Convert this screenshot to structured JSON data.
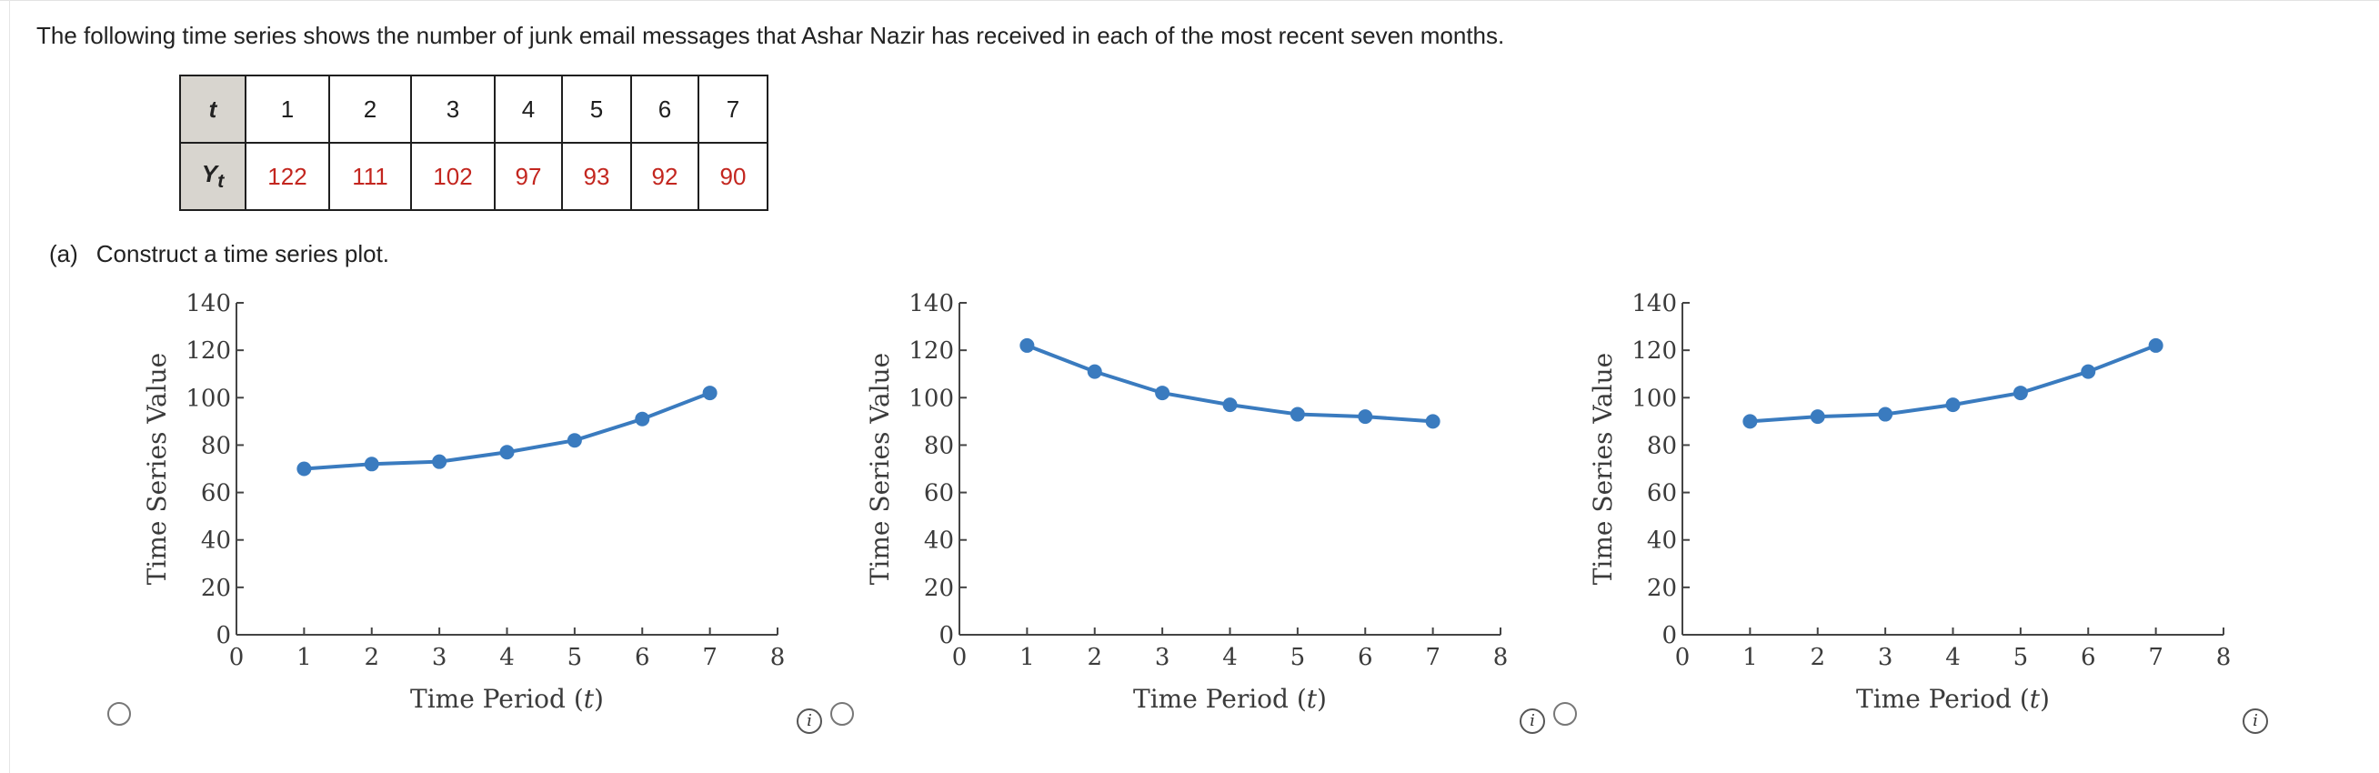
{
  "question_text": "The following time series shows the number of junk email messages that Ashar Nazir has received in each of the most recent seven months.",
  "table": {
    "row1_header": "t",
    "row2_header_main": "Y",
    "row2_header_sub": "t",
    "t_values": [
      "1",
      "2",
      "3",
      "4",
      "5",
      "6",
      "7"
    ],
    "y_values": [
      "122",
      "111",
      "102",
      "97",
      "93",
      "92",
      "90"
    ]
  },
  "part_a": {
    "tag": "(a)",
    "instruction": "Construct a time series plot."
  },
  "colors": {
    "series": "#3a7bbf",
    "table_values": "#c3261f",
    "table_header_bg": "#d8d5cf"
  },
  "chart_data": [
    {
      "type": "line",
      "option": 1,
      "x": [
        1,
        2,
        3,
        4,
        5,
        6,
        7
      ],
      "y": [
        70,
        72,
        73,
        77,
        82,
        91,
        102
      ],
      "xlabel": "Time Period (t)",
      "ylabel": "Time Series Value",
      "xlim": [
        0,
        8
      ],
      "ylim": [
        0,
        140
      ],
      "xticks": [
        0,
        1,
        2,
        3,
        4,
        5,
        6,
        7,
        8
      ],
      "yticks": [
        0,
        20,
        40,
        60,
        80,
        100,
        120,
        140
      ],
      "grid": false
    },
    {
      "type": "line",
      "option": 2,
      "x": [
        1,
        2,
        3,
        4,
        5,
        6,
        7
      ],
      "y": [
        122,
        111,
        102,
        97,
        93,
        92,
        90
      ],
      "xlabel": "Time Period (t)",
      "ylabel": "Time Series Value",
      "xlim": [
        0,
        8
      ],
      "ylim": [
        0,
        140
      ],
      "xticks": [
        0,
        1,
        2,
        3,
        4,
        5,
        6,
        7,
        8
      ],
      "yticks": [
        0,
        20,
        40,
        60,
        80,
        100,
        120,
        140
      ],
      "grid": false
    },
    {
      "type": "line",
      "option": 3,
      "x": [
        1,
        2,
        3,
        4,
        5,
        6,
        7
      ],
      "y": [
        90,
        92,
        93,
        97,
        102,
        111,
        122
      ],
      "xlabel": "Time Period (t)",
      "ylabel": "Time Series Value",
      "xlim": [
        0,
        8
      ],
      "ylim": [
        0,
        140
      ],
      "xticks": [
        0,
        1,
        2,
        3,
        4,
        5,
        6,
        7,
        8
      ],
      "yticks": [
        0,
        20,
        40,
        60,
        80,
        100,
        120,
        140
      ],
      "grid": false
    }
  ],
  "info_icon": "info-icon",
  "radio_icon": "radio-button"
}
